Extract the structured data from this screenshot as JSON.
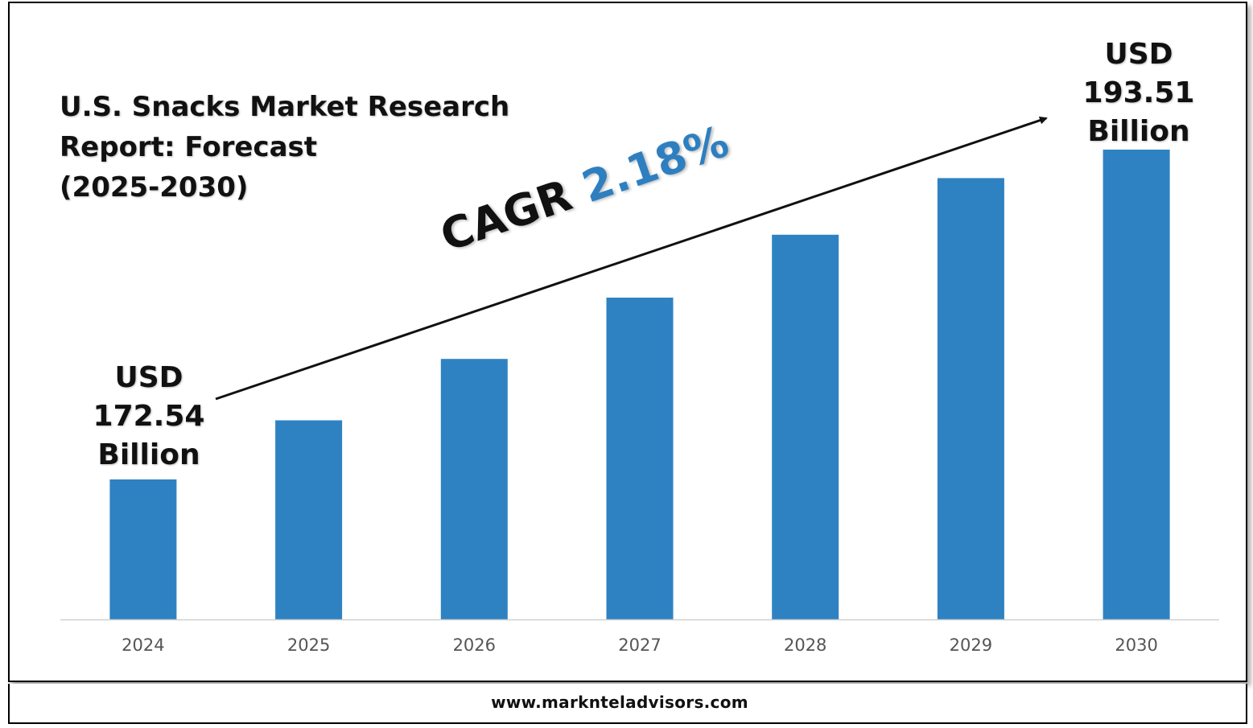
{
  "title_lines": [
    "U.S. Snacks Market Research",
    "Report: Forecast",
    "(2025-2030)"
  ],
  "cagr": {
    "label": "CAGR",
    "value": "2.18%",
    "color": "#2e7fc0"
  },
  "callouts": {
    "start": {
      "line1": "USD",
      "line2": "172.54",
      "line3": "Billion"
    },
    "end": {
      "line1": "USD",
      "line2": "193.51",
      "line3": "Billion"
    }
  },
  "footer": {
    "website": "www.marknteladvisors.com"
  },
  "colors": {
    "bar": "#2e82c2",
    "axis": "#d0d0d0",
    "tick_label": "#555555"
  },
  "chart_data": {
    "type": "bar",
    "title": "U.S. Snacks Market Research Report: Forecast (2025-2030)",
    "xlabel": "",
    "ylabel": "",
    "categories": [
      "2024",
      "2025",
      "2026",
      "2027",
      "2028",
      "2029",
      "2030"
    ],
    "values": [
      172.54,
      176.3,
      180.2,
      184.1,
      188.1,
      191.7,
      193.51
    ],
    "grid": false,
    "legend": "none",
    "annotations": [
      "USD 172.54 Billion",
      "USD 193.51 Billion",
      "CAGR 2.18%"
    ]
  }
}
